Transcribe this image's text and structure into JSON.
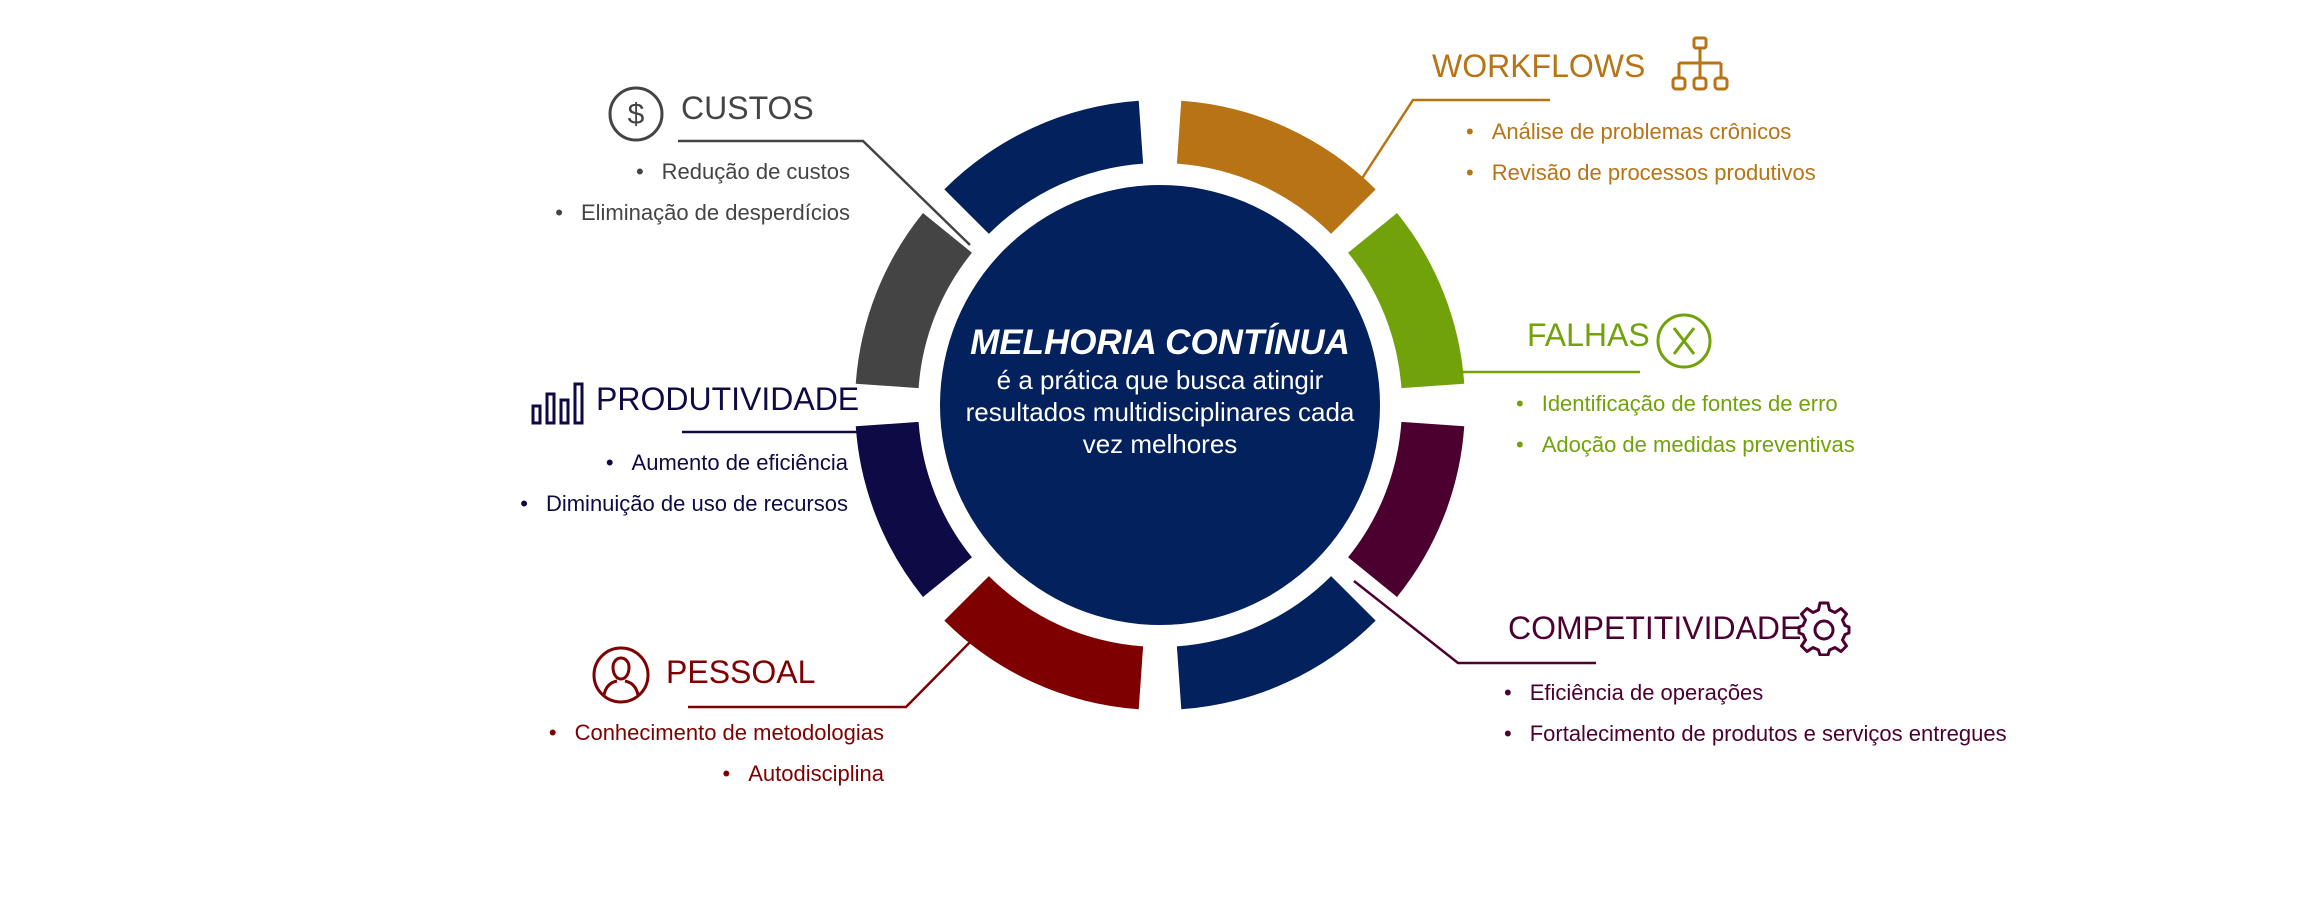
{
  "center": {
    "title": "MELHORIA CONTÍNUA",
    "subtitle_lines": [
      "é a prática que busca atingir",
      "resultados multidisciplinares cada",
      "vez melhores"
    ]
  },
  "colors": {
    "center": "#03215c",
    "custos": "#444444",
    "produtividade": "#0e0a45",
    "pessoal": "#7e0000",
    "workflows": "#b87314",
    "falhas": "#72a20a",
    "competitividade": "#4c0030",
    "neutral_segment": "#03215c"
  },
  "sections": {
    "custos": {
      "title": "CUSTOS",
      "icon": "dollar-icon",
      "items": [
        "Redução de custos",
        "Eliminação de desperdícios"
      ]
    },
    "produtividade": {
      "title": "PRODUTIVIDADE",
      "icon": "bar-chart-icon",
      "items": [
        "Aumento de eficiência",
        "Diminuição de uso de recursos"
      ]
    },
    "pessoal": {
      "title": "PESSOAL",
      "icon": "person-icon",
      "items": [
        "Conhecimento de metodologias",
        "Autodisciplina"
      ]
    },
    "workflows": {
      "title": "WORKFLOWS",
      "icon": "org-chart-icon",
      "items": [
        "Análise de problemas crônicos",
        "Revisão de processos produtivos"
      ]
    },
    "falhas": {
      "title": "FALHAS",
      "icon": "x-circle-icon",
      "items": [
        "Identificação de fontes de erro",
        "Adoção de medidas preventivas"
      ]
    },
    "competitividade": {
      "title": "COMPETITIVIDADE",
      "icon": "gear-icon",
      "items": [
        "Eficiência de operações",
        "Fortalecimento de produtos e serviços entregues"
      ]
    }
  }
}
